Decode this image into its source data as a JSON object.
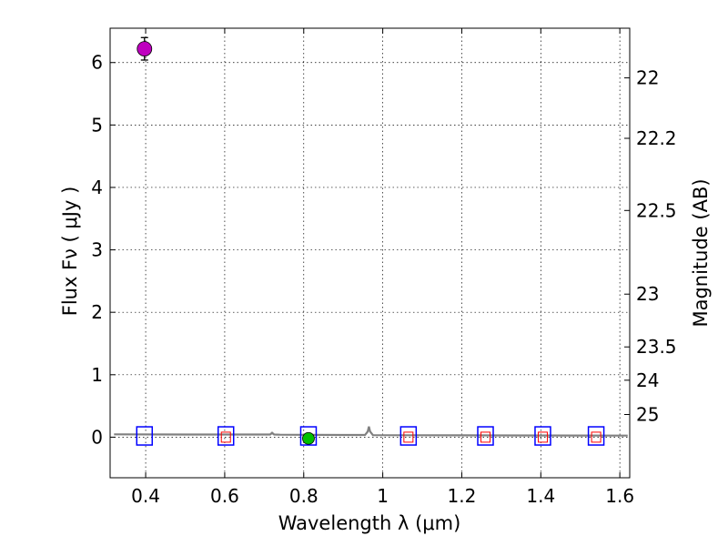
{
  "chart_data": {
    "type": "scatter",
    "xlabel": "Wavelength  λ (μm)",
    "ylabel": "Flux  Fν  ( μJy )",
    "y2label": "Magnitude (AB)",
    "xlim": [
      0.31,
      1.625
    ],
    "ylim": [
      -0.65,
      6.55
    ],
    "grid": true,
    "x_ticks": [
      0.4,
      0.6,
      0.8,
      1.0,
      1.2,
      1.4,
      1.6
    ],
    "x_tick_labels": [
      "0.4",
      "0.6",
      "0.8",
      "1",
      "1.2",
      "1.4",
      "1.6"
    ],
    "y_ticks": [
      0,
      1,
      2,
      3,
      4,
      5,
      6
    ],
    "y_tick_labels": [
      "0",
      "1",
      "2",
      "3",
      "4",
      "5",
      "6"
    ],
    "mag_ticks": [
      {
        "mag": 22,
        "label": "22"
      },
      {
        "mag": 22.2,
        "label": "22.2"
      },
      {
        "mag": 22.5,
        "label": "22.5"
      },
      {
        "mag": 23,
        "label": "23"
      },
      {
        "mag": 23.5,
        "label": "23.5"
      },
      {
        "mag": 24,
        "label": "24"
      },
      {
        "mag": 25,
        "label": "25"
      }
    ],
    "series": [
      {
        "name": "model-spectrum",
        "style": "line",
        "color": "#808080",
        "x": [
          0.32,
          0.5,
          0.7,
          0.715,
          0.72,
          0.725,
          0.74,
          0.9,
          0.955,
          0.962,
          0.965,
          0.968,
          0.975,
          1.1,
          1.3,
          1.5,
          1.62
        ],
        "y": [
          0.045,
          0.043,
          0.042,
          0.042,
          0.07,
          0.042,
          0.04,
          0.035,
          0.035,
          0.09,
          0.17,
          0.09,
          0.032,
          0.03,
          0.028,
          0.026,
          0.025
        ]
      },
      {
        "name": "model-photometry",
        "style": "square-open",
        "color": "#0000ff",
        "x": [
          0.397,
          0.603,
          0.812,
          1.065,
          1.26,
          1.405,
          1.54
        ],
        "y": [
          0.02,
          0.02,
          0.02,
          0.02,
          0.02,
          0.02,
          0.02
        ]
      },
      {
        "name": "detection",
        "style": "circle-filled",
        "color": "#bf00bf",
        "x": [
          0.397
        ],
        "y": [
          6.22
        ],
        "yerr": [
          0.18
        ]
      },
      {
        "name": "detection-green",
        "style": "circle-filled",
        "color": "#00c000",
        "x": [
          0.812
        ],
        "y": [
          -0.02
        ],
        "yerr": [
          0.03
        ]
      },
      {
        "name": "upper-limits",
        "style": "square-open-small",
        "color": "#ff0000",
        "x": [
          0.603,
          1.065,
          1.26,
          1.405,
          1.54
        ],
        "y": [
          0.0,
          0.0,
          0.0,
          0.0,
          0.0
        ]
      }
    ],
    "colors": {
      "axis": "#000000",
      "grid": "#000000",
      "spectrum": "#808080",
      "model": "#0000ff",
      "magenta": "#bf00bf",
      "green": "#00c000",
      "red": "#ff0000"
    }
  }
}
